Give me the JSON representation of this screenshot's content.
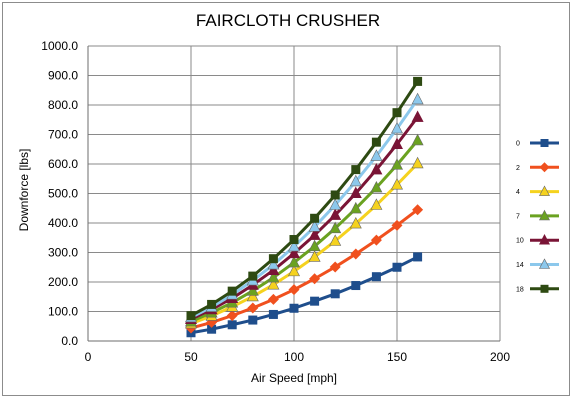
{
  "chart_data": {
    "type": "line",
    "title": "FAIRCLOTH CRUSHER",
    "xlabel": "Air Speed [mph]",
    "ylabel": "Downforce [lbs]",
    "xlim": [
      0,
      200
    ],
    "ylim": [
      0,
      1000
    ],
    "x_ticks": [
      "0",
      "50",
      "100",
      "150",
      "200"
    ],
    "y_ticks": [
      "0.0",
      "100.0",
      "200.0",
      "300.0",
      "400.0",
      "500.0",
      "600.0",
      "700.0",
      "800.0",
      "900.0",
      "1000.0"
    ],
    "grid": true,
    "legend_position": "right",
    "x": [
      50,
      60,
      70,
      80,
      90,
      100,
      110,
      120,
      130,
      140,
      150,
      160
    ],
    "series": [
      {
        "name": "0",
        "color": "#1f4e8c",
        "marker": "square",
        "values": [
          28,
          40,
          55,
          71,
          90,
          111,
          135,
          160,
          188,
          218,
          250,
          285
        ]
      },
      {
        "name": "2",
        "color": "#f0501e",
        "marker": "diamond",
        "values": [
          44,
          63,
          86,
          112,
          141,
          174,
          211,
          251,
          295,
          342,
          392,
          445
        ]
      },
      {
        "name": "4",
        "color": "#f5d21e",
        "marker": "triangle",
        "values": [
          59,
          85,
          116,
          151,
          191,
          236,
          285,
          339,
          398,
          461,
          530,
          602
        ]
      },
      {
        "name": "7",
        "color": "#6aa220",
        "marker": "triangle",
        "values": [
          66,
          96,
          130,
          170,
          215,
          266,
          321,
          382,
          449,
          520,
          597,
          680
        ]
      },
      {
        "name": "10",
        "color": "#7a1436",
        "marker": "triangle",
        "values": [
          74,
          107,
          145,
          190,
          240,
          297,
          359,
          427,
          501,
          581,
          667,
          759
        ]
      },
      {
        "name": "14",
        "color": "#8cc8ec",
        "marker": "triangle",
        "values": [
          80,
          115,
          157,
          205,
          259,
          320,
          387,
          461,
          541,
          627,
          720,
          819
        ]
      },
      {
        "name": "18",
        "color": "#2e4a12",
        "marker": "square",
        "values": [
          86,
          124,
          169,
          220,
          279,
          344,
          416,
          495,
          581,
          674,
          774,
          880
        ]
      }
    ]
  }
}
